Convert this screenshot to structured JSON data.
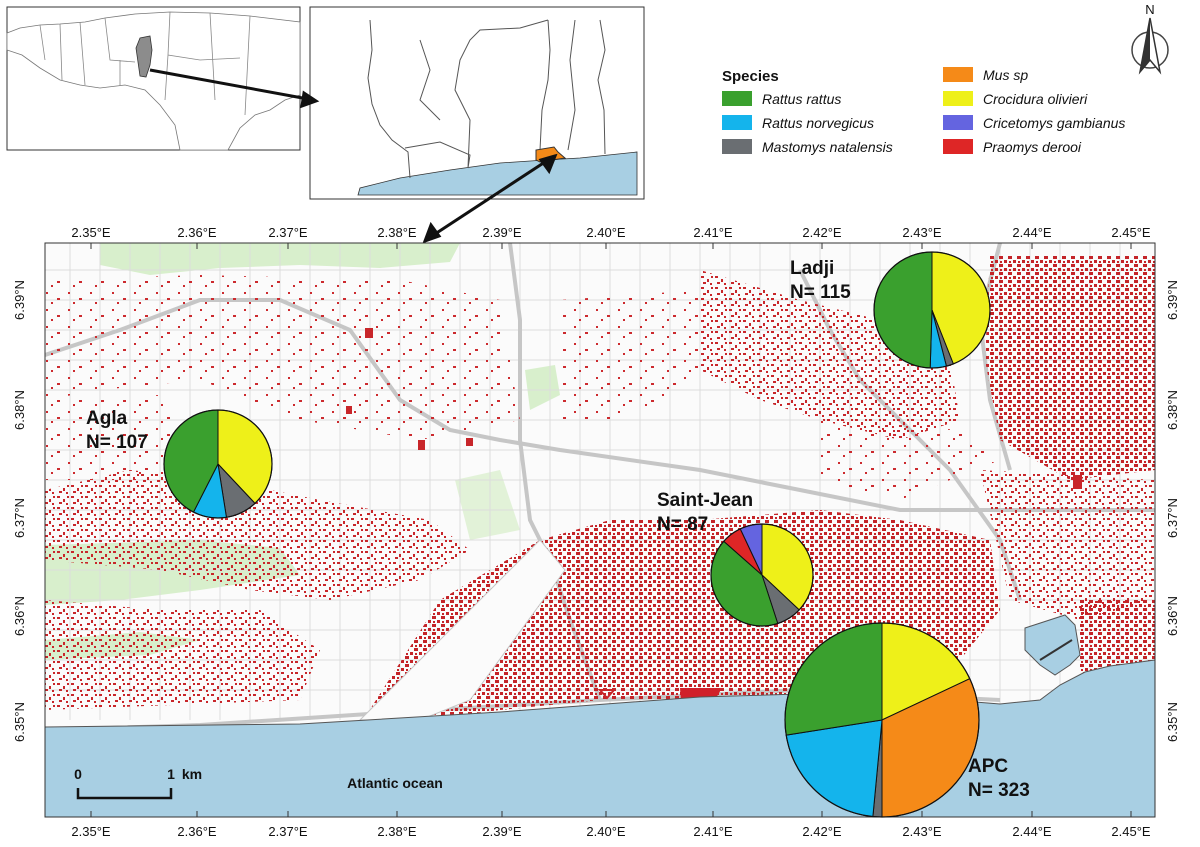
{
  "north_label": "N",
  "legend": {
    "title": "Species",
    "items": [
      {
        "label": "Rattus rattus",
        "color": "#3aa02e"
      },
      {
        "label": "Rattus norvegicus",
        "color": "#14b4ec"
      },
      {
        "label": "Mastomys natalensis",
        "color": "#6a6e72"
      },
      {
        "label": "Mus sp",
        "color": "#f58a18"
      },
      {
        "label": "Crocidura olivieri",
        "color": "#eef019"
      },
      {
        "label": "Cricetomys gambianus",
        "color": "#6464e0"
      },
      {
        "label": "Praomys derooi",
        "color": "#de2626"
      }
    ]
  },
  "axes": {
    "x_ticks": [
      "2.35°E",
      "2.36°E",
      "2.37°E",
      "2.38°E",
      "2.39°E",
      "2.40°E",
      "2.41°E",
      "2.42°E",
      "2.43°E",
      "2.44°E",
      "2.45°E"
    ],
    "y_ticks": [
      "6.39°N",
      "6.38°N",
      "6.37°N",
      "6.36°N",
      "6.35°N"
    ]
  },
  "ocean_label": "Atlantic ocean",
  "scale": {
    "start": "0",
    "end": "1",
    "unit": "km"
  },
  "sites": [
    {
      "name": "Ladji",
      "n_label": "N= 115",
      "n": 115,
      "shares": {
        "Rattus rattus": 0.495,
        "Rattus norvegicus": 0.045,
        "Mastomys natalensis": 0.02,
        "Crocidura olivieri": 0.44
      }
    },
    {
      "name": "Agla",
      "n_label": "N= 107",
      "n": 107,
      "shares": {
        "Rattus rattus": 0.425,
        "Rattus norvegicus": 0.1,
        "Mastomys natalensis": 0.095,
        "Crocidura olivieri": 0.38
      }
    },
    {
      "name": "Saint-Jean",
      "n_label": "N= 87",
      "n": 87,
      "shares": {
        "Rattus rattus": 0.415,
        "Mastomys natalensis": 0.08,
        "Crocidura olivieri": 0.37,
        "Cricetomys gambianus": 0.07,
        "Praomys derooi": 0.065
      }
    },
    {
      "name": "APC",
      "n_label": "N= 323",
      "n": 323,
      "shares": {
        "Rattus rattus": 0.275,
        "Rattus norvegicus": 0.21,
        "Mastomys natalensis": 0.015,
        "Mus sp": 0.32,
        "Crocidura olivieri": 0.18
      }
    }
  ]
}
